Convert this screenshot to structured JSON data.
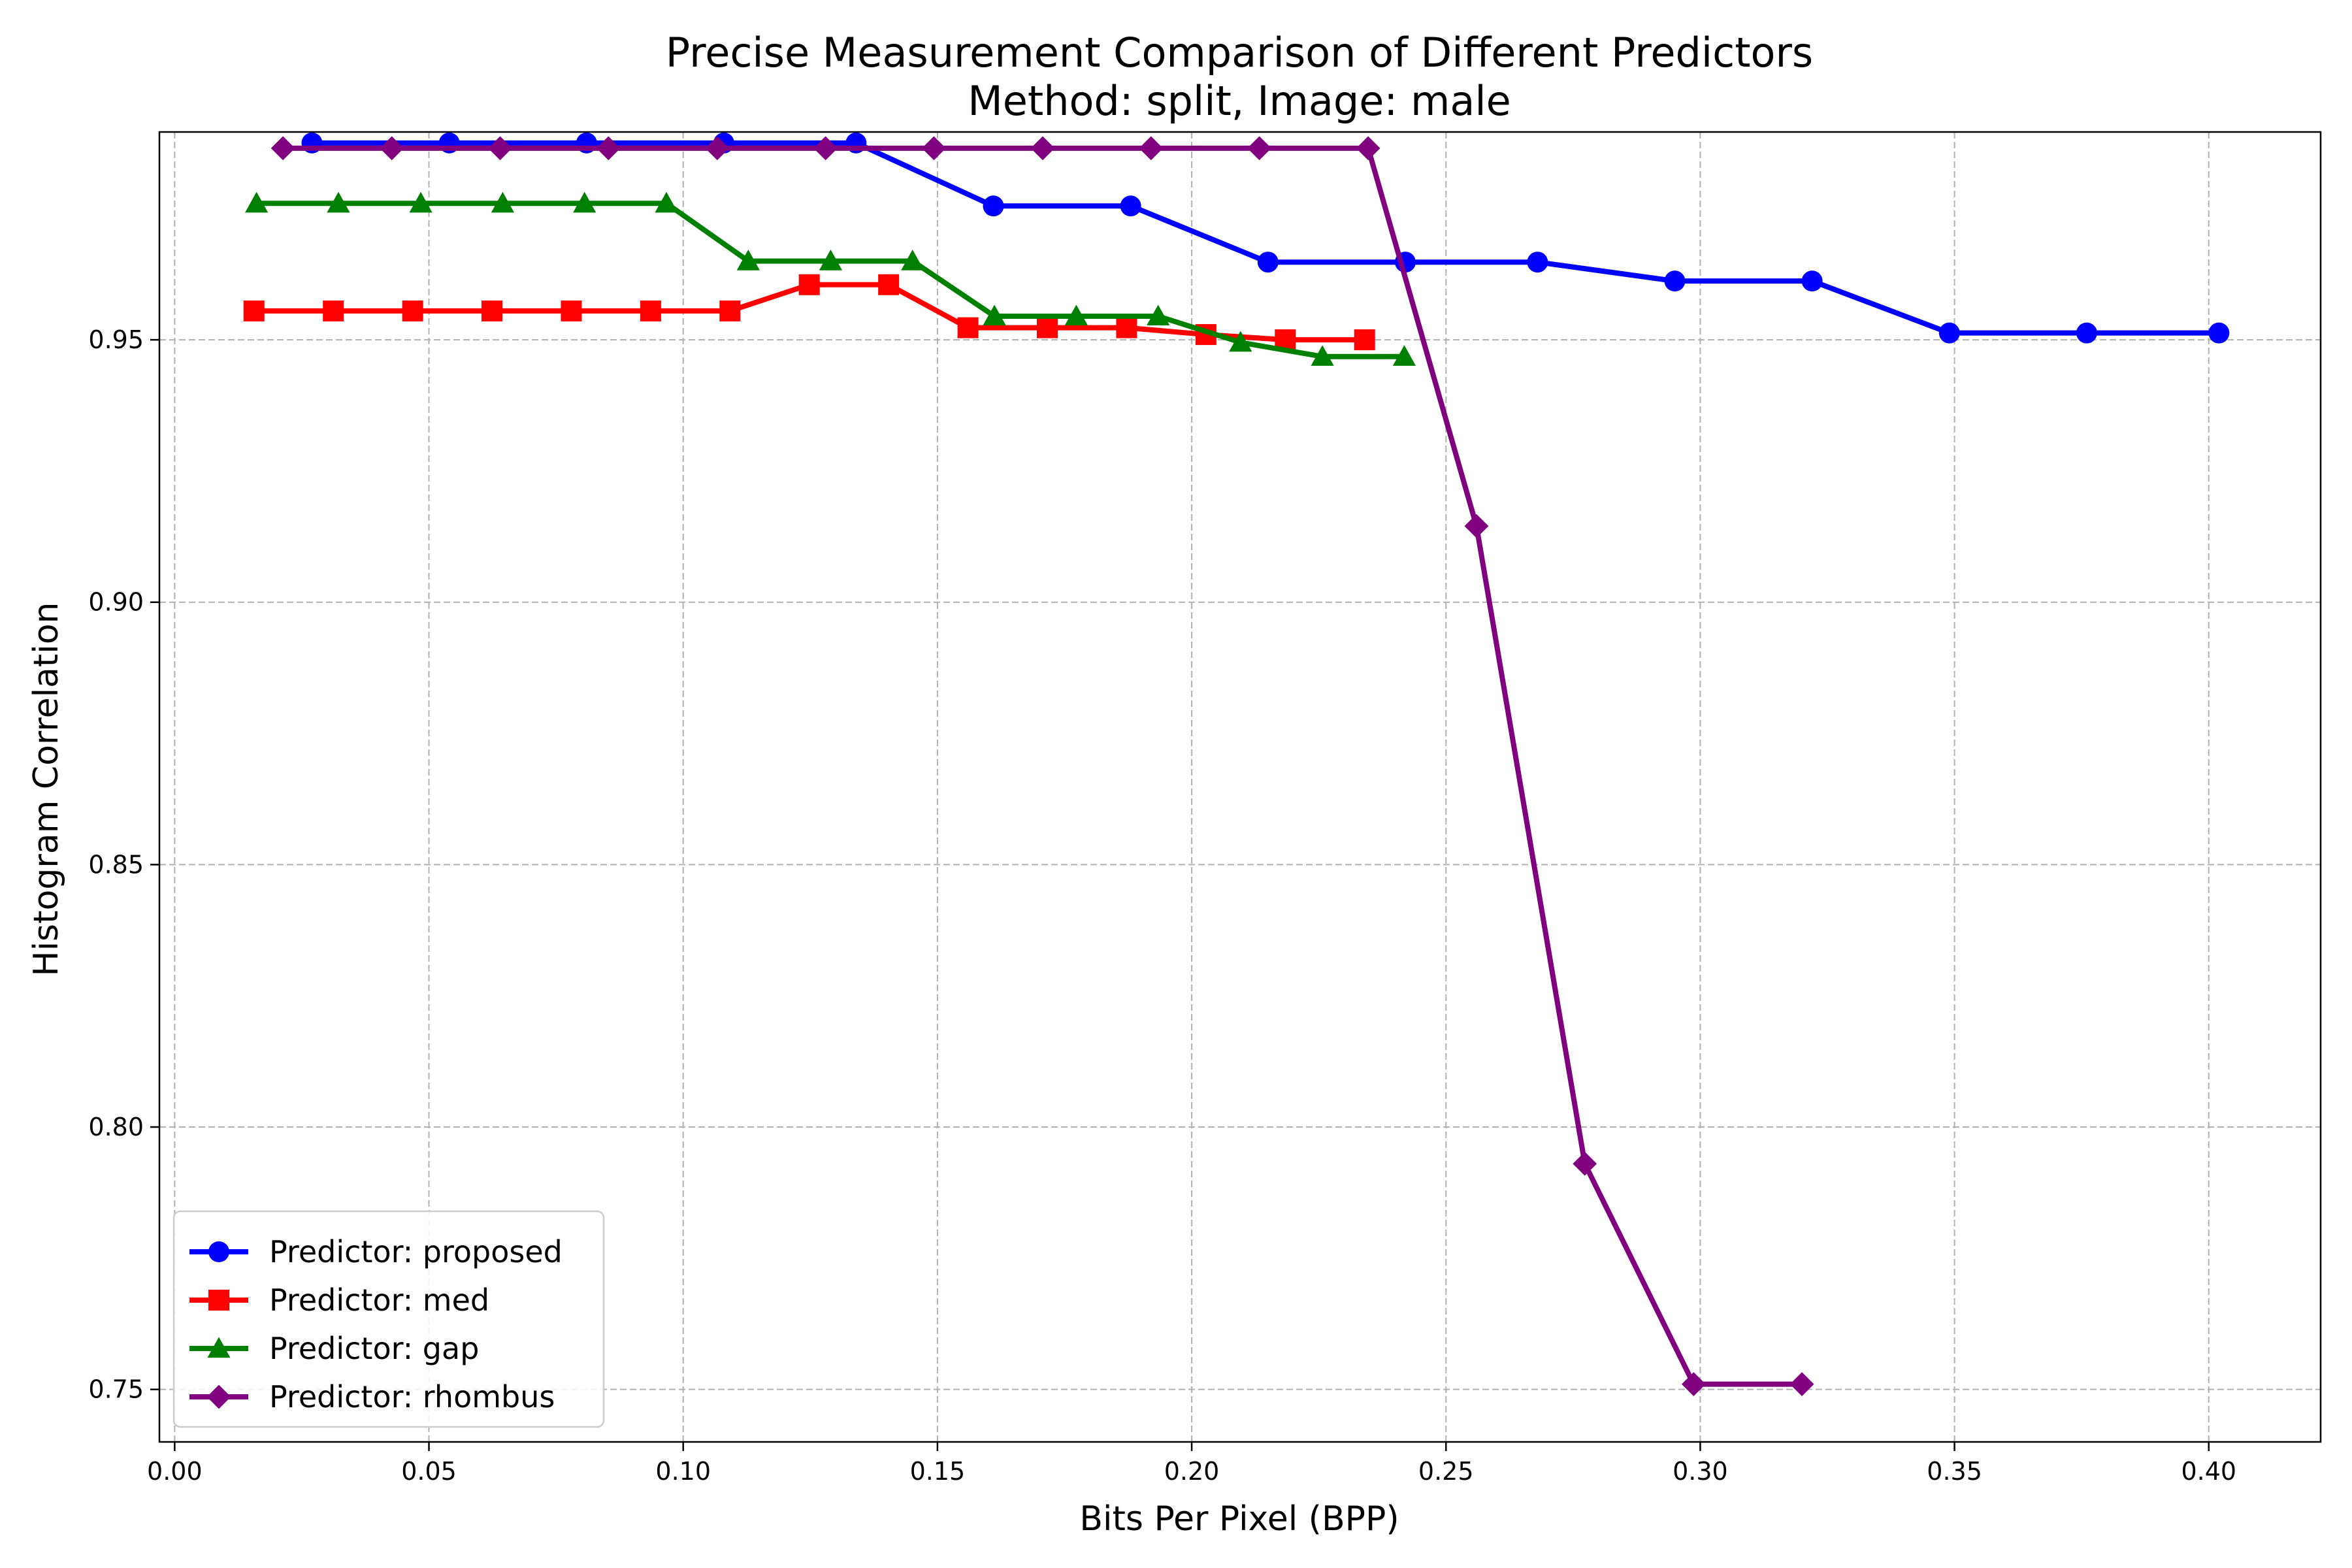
{
  "chart_data": {
    "type": "line",
    "title": "Precise Measurement Comparison of Different Predictors",
    "subtitle": "Method: split, Image: male",
    "xlabel": "Bits Per Pixel (BPP)",
    "ylabel": "Histogram Correlation",
    "xlim": [
      -0.003,
      0.422
    ],
    "ylim": [
      0.74,
      0.9896
    ],
    "x_ticks": [
      "0.00",
      "0.05",
      "0.10",
      "0.15",
      "0.20",
      "0.25",
      "0.30",
      "0.35",
      "0.40"
    ],
    "x_tick_values": [
      0.0,
      0.05,
      0.1,
      0.15,
      0.2,
      0.25,
      0.3,
      0.35,
      0.4
    ],
    "y_ticks": [
      "0.75",
      "0.80",
      "0.85",
      "0.90",
      "0.95"
    ],
    "y_tick_values": [
      0.75,
      0.8,
      0.85,
      0.9,
      0.95
    ],
    "grid": true,
    "legend_position": "lower-left",
    "series": [
      {
        "name": "Predictor: proposed",
        "color": "#0000ff",
        "marker": "circle",
        "x": [
          0.027,
          0.054,
          0.081,
          0.108,
          0.134,
          0.161,
          0.188,
          0.215,
          0.242,
          0.268,
          0.295,
          0.322,
          0.349,
          0.376,
          0.402
        ],
        "y": [
          0.9875,
          0.9875,
          0.9875,
          0.9875,
          0.9875,
          0.9755,
          0.9755,
          0.9648,
          0.9648,
          0.9648,
          0.9612,
          0.9612,
          0.9513,
          0.9513,
          0.9513
        ]
      },
      {
        "name": "Predictor: med",
        "color": "#ff0000",
        "marker": "square",
        "x": [
          0.0156,
          0.0312,
          0.0468,
          0.0624,
          0.078,
          0.0936,
          0.1092,
          0.1248,
          0.1404,
          0.156,
          0.1716,
          0.1872,
          0.2028,
          0.2184,
          0.234
        ],
        "y": [
          0.9555,
          0.9555,
          0.9555,
          0.9555,
          0.9555,
          0.9555,
          0.9555,
          0.9605,
          0.9605,
          0.9523,
          0.9523,
          0.9523,
          0.951,
          0.95,
          0.95
        ]
      },
      {
        "name": "Predictor: gap",
        "color": "#008000",
        "marker": "triangle",
        "x": [
          0.0161,
          0.0322,
          0.0484,
          0.0645,
          0.0806,
          0.0967,
          0.1128,
          0.129,
          0.1451,
          0.1612,
          0.1773,
          0.1934,
          0.2096,
          0.2257,
          0.2418
        ],
        "y": [
          0.976,
          0.976,
          0.976,
          0.976,
          0.976,
          0.976,
          0.965,
          0.965,
          0.965,
          0.9545,
          0.9545,
          0.9545,
          0.9495,
          0.9468,
          0.9468
        ]
      },
      {
        "name": "Predictor: rhombus",
        "color": "#800080",
        "marker": "diamond",
        "x": [
          0.0213,
          0.0427,
          0.064,
          0.0853,
          0.1067,
          0.128,
          0.1493,
          0.1707,
          0.192,
          0.2133,
          0.2347,
          0.256,
          0.2773,
          0.2987,
          0.32
        ],
        "y": [
          0.9865,
          0.9865,
          0.9865,
          0.9865,
          0.9865,
          0.9865,
          0.9865,
          0.9865,
          0.9865,
          0.9865,
          0.9865,
          0.9145,
          0.793,
          0.751,
          0.751
        ]
      }
    ]
  }
}
